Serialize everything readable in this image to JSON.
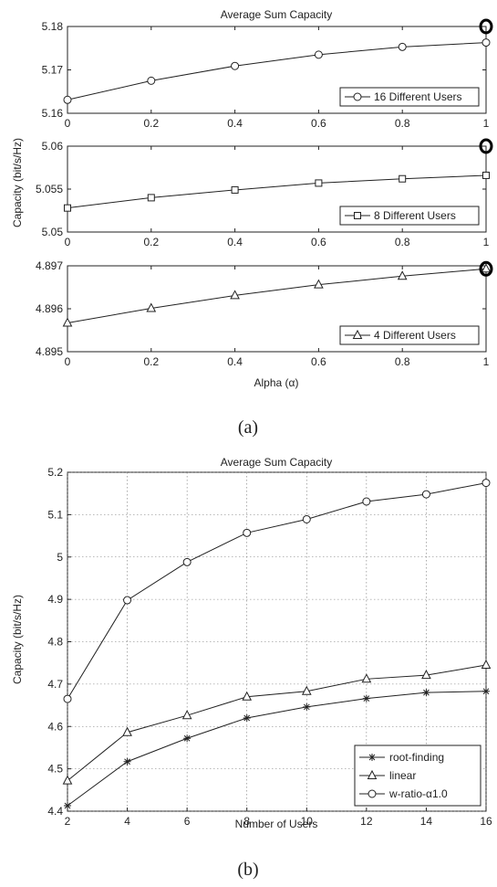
{
  "chart_data": [
    {
      "type": "line",
      "figure_label": "(a)",
      "title": "Average Sum Capacity",
      "shared_ylabel": "Capacity (bit/s/Hz)",
      "xlabel": "Alpha (α)",
      "xlim": [
        0,
        1
      ],
      "grid": false,
      "panels": [
        {
          "series_name": "16 Different Users",
          "marker": "circle",
          "legend": "bottom-right",
          "x": [
            0,
            0.2,
            0.4,
            0.6,
            0.8,
            1
          ],
          "y": [
            5.1631,
            5.1675,
            5.1709,
            5.1735,
            5.1753,
            5.1763
          ],
          "ylim": [
            5.16,
            5.18
          ],
          "yticks": [
            "5.16",
            "5.17",
            "5.18"
          ],
          "xticks": [
            "0",
            "0.2",
            "0.4",
            "0.6",
            "0.8",
            "1"
          ],
          "highlight": {
            "x": 1,
            "y": 5.18
          }
        },
        {
          "series_name": "8 Different Users",
          "marker": "square",
          "legend": "bottom-right",
          "x": [
            0,
            0.2,
            0.4,
            0.6,
            0.8,
            1
          ],
          "y": [
            5.0528,
            5.054,
            5.0549,
            5.0557,
            5.0562,
            5.0566
          ],
          "ylim": [
            5.05,
            5.06
          ],
          "yticks": [
            "5.05",
            "5.055",
            "5.06"
          ],
          "xticks": [
            "0",
            "0.2",
            "0.4",
            "0.6",
            "0.8",
            "1"
          ],
          "highlight": {
            "x": 1,
            "y": 5.06
          }
        },
        {
          "series_name": "4 Different Users",
          "marker": "triangle",
          "legend": "bottom-right",
          "x": [
            0,
            0.2,
            0.4,
            0.6,
            0.8,
            1
          ],
          "y": [
            4.89567,
            4.89601,
            4.89631,
            4.89656,
            4.89676,
            4.89693
          ],
          "ylim": [
            4.895,
            4.897
          ],
          "yticks": [
            "4.895",
            "4.896",
            "4.897"
          ],
          "xticks": [
            "0",
            "0.2",
            "0.4",
            "0.6",
            "0.8",
            "1"
          ],
          "highlight": {
            "x": 1,
            "y": 4.89693
          }
        }
      ]
    },
    {
      "type": "line",
      "figure_label": "(b)",
      "title": "Average Sum Capacity",
      "xlabel": "Number of Users",
      "ylabel": "Capacity (bit/s/Hz)",
      "xlim": [
        2,
        16
      ],
      "ylim": [
        4.4,
        5.2
      ],
      "xticks": [
        "2",
        "4",
        "6",
        "8",
        "10",
        "12",
        "14",
        "16"
      ],
      "yticks": [
        "4.4",
        "4.5",
        "4.6",
        "4.7",
        "4.8",
        "4.9",
        "5",
        "5.1",
        "5.2"
      ],
      "grid": true,
      "legend": "bottom-right",
      "x": [
        2,
        4,
        6,
        8,
        10,
        12,
        14,
        16
      ],
      "series": [
        {
          "name": "root-finding",
          "marker": "star",
          "values": [
            4.413,
            4.517,
            4.572,
            4.62,
            4.646,
            4.666,
            4.68,
            4.683
          ]
        },
        {
          "name": "linear",
          "marker": "triangle",
          "values": [
            4.472,
            4.586,
            4.626,
            4.67,
            4.683,
            4.712,
            4.721,
            4.745
          ]
        },
        {
          "name": "w-ratio-α1.0",
          "marker": "circle",
          "values": [
            4.665,
            4.898,
            4.988,
            5.057,
            5.089,
            5.131,
            5.148,
            5.175
          ]
        }
      ]
    }
  ]
}
